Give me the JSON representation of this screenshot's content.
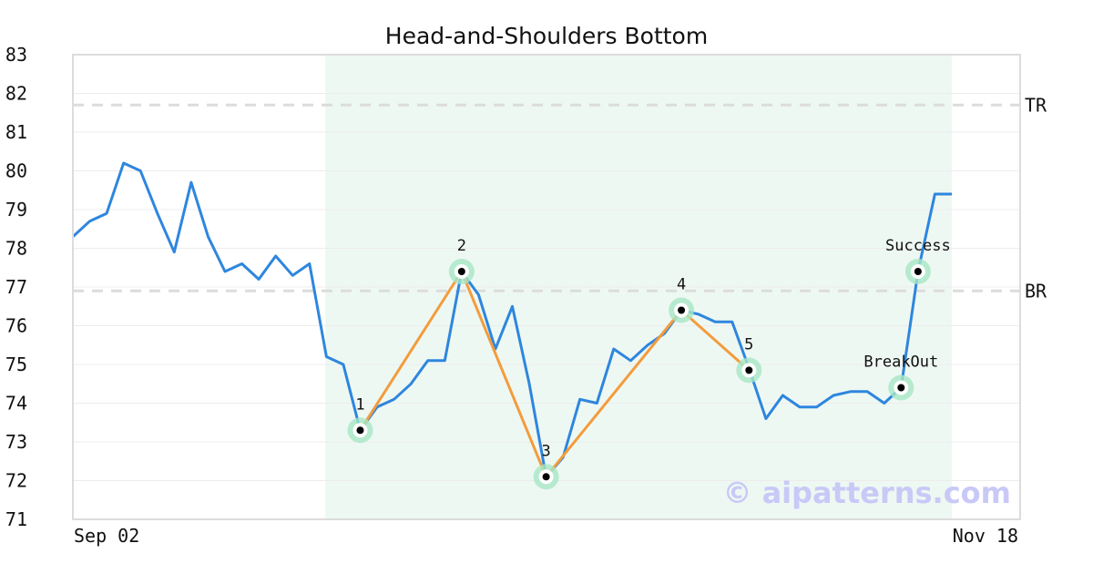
{
  "chart_data": {
    "type": "line",
    "title": "Head-and-Shoulders Bottom",
    "ylim": [
      71,
      83
    ],
    "y_ticks": [
      71,
      72,
      73,
      74,
      75,
      76,
      77,
      78,
      79,
      80,
      81,
      82,
      83
    ],
    "x_tick_labels": [
      "Sep 02",
      "Nov 18"
    ],
    "grid": true,
    "series": [
      {
        "color": "#2e86de",
        "values": [
          78.3,
          78.7,
          78.9,
          80.2,
          80.0,
          78.9,
          77.9,
          79.7,
          78.3,
          77.4,
          77.6,
          77.2,
          77.8,
          77.3,
          77.6,
          75.2,
          75.0,
          73.3,
          73.9,
          74.1,
          74.5,
          75.1,
          75.1,
          77.4,
          76.8,
          75.4,
          76.5,
          74.5,
          72.1,
          72.6,
          74.1,
          74.0,
          75.4,
          75.1,
          75.5,
          75.8,
          76.4,
          76.3,
          76.1,
          76.1,
          74.9,
          73.6,
          74.2,
          73.9,
          73.9,
          74.2,
          74.3,
          74.3,
          74.0,
          74.4,
          77.4,
          79.4,
          79.4
        ]
      }
    ],
    "pattern_region": {
      "start_index": 15,
      "end_index": 52,
      "color": "#e8f5ef"
    },
    "pattern_line": {
      "color": "#f39c3c",
      "points": [
        {
          "index": 17,
          "value": 73.3,
          "label": "1"
        },
        {
          "index": 23,
          "value": 77.4,
          "label": "2"
        },
        {
          "index": 28,
          "value": 72.1,
          "label": "3"
        },
        {
          "index": 36,
          "value": 76.4,
          "label": "4"
        },
        {
          "index": 40,
          "value": 74.85,
          "label": "5"
        }
      ]
    },
    "event_points": [
      {
        "index": 49,
        "value": 74.4,
        "label": "BreakOut"
      },
      {
        "index": 50,
        "value": 77.4,
        "label": "Success"
      }
    ],
    "reference_lines": [
      {
        "label": "TR",
        "value": 81.7
      },
      {
        "label": "BR",
        "value": 76.9
      }
    ],
    "marker_color": "#a8e6c6"
  },
  "watermark": "© aipatterns.com"
}
